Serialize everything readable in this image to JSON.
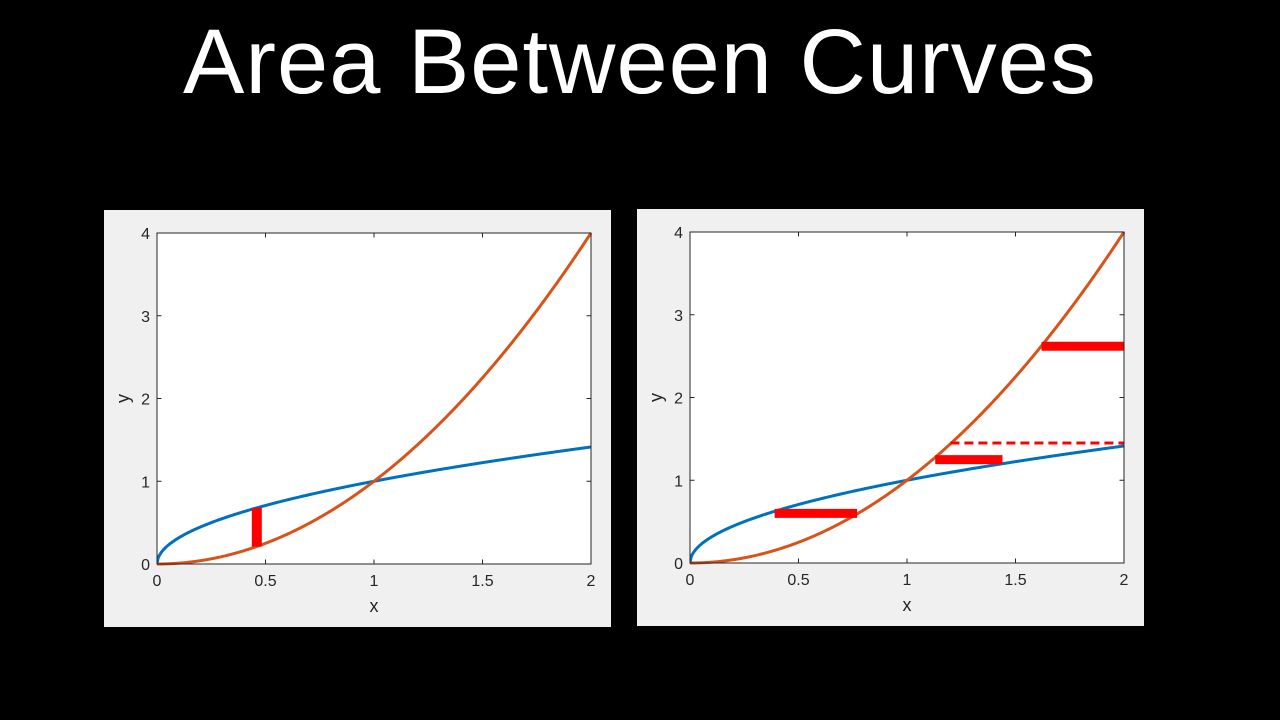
{
  "title": "Area Between Curves",
  "colors": {
    "background": "#000000",
    "panel": "#f0f0f0",
    "plot_area": "#ffffff",
    "sqrt_curve": "#0072BD",
    "square_curve": "#D95319",
    "strip": "#ff0000"
  },
  "chart_data": [
    {
      "type": "line",
      "xlabel": "x",
      "ylabel": "y",
      "xlim": [
        0,
        2
      ],
      "ylim": [
        0,
        4
      ],
      "xticks": [
        "0",
        "0.5",
        "1",
        "1.5",
        "2"
      ],
      "yticks": [
        "0",
        "1",
        "2",
        "3",
        "4"
      ],
      "grid": false,
      "series": [
        {
          "function": "y = sqrt(x)",
          "color": "#0072BD",
          "x_range": [
            0,
            2
          ]
        },
        {
          "function": "y = x^2",
          "color": "#D95319",
          "x_range": [
            0,
            2
          ]
        }
      ],
      "annotations": [
        {
          "kind": "vertical-strip",
          "x": 0.46,
          "y_from": 0.21,
          "y_to": 0.68,
          "color": "#ff0000",
          "style": "solid"
        }
      ]
    },
    {
      "type": "line",
      "xlabel": "x",
      "ylabel": "y",
      "xlim": [
        0,
        2
      ],
      "ylim": [
        0,
        4
      ],
      "xticks": [
        "0",
        "0.5",
        "1",
        "1.5",
        "2"
      ],
      "yticks": [
        "0",
        "1",
        "2",
        "3",
        "4"
      ],
      "grid": false,
      "series": [
        {
          "function": "y = sqrt(x)",
          "color": "#0072BD",
          "x_range": [
            0,
            2
          ]
        },
        {
          "function": "y = x^2",
          "color": "#D95319",
          "x_range": [
            0,
            2
          ]
        }
      ],
      "annotations": [
        {
          "kind": "horizontal-strip",
          "y": 0.6,
          "x_from": 0.39,
          "x_to": 0.77,
          "color": "#ff0000",
          "style": "solid"
        },
        {
          "kind": "horizontal-strip",
          "y": 1.25,
          "x_from": 1.13,
          "x_to": 1.44,
          "color": "#ff0000",
          "style": "solid"
        },
        {
          "kind": "horizontal-strip",
          "y": 1.45,
          "x_from": 1.2,
          "x_to": 2.0,
          "color": "#ff0000",
          "style": "dashed"
        },
        {
          "kind": "horizontal-strip",
          "y": 2.62,
          "x_from": 1.62,
          "x_to": 2.0,
          "color": "#ff0000",
          "style": "solid"
        }
      ]
    }
  ]
}
